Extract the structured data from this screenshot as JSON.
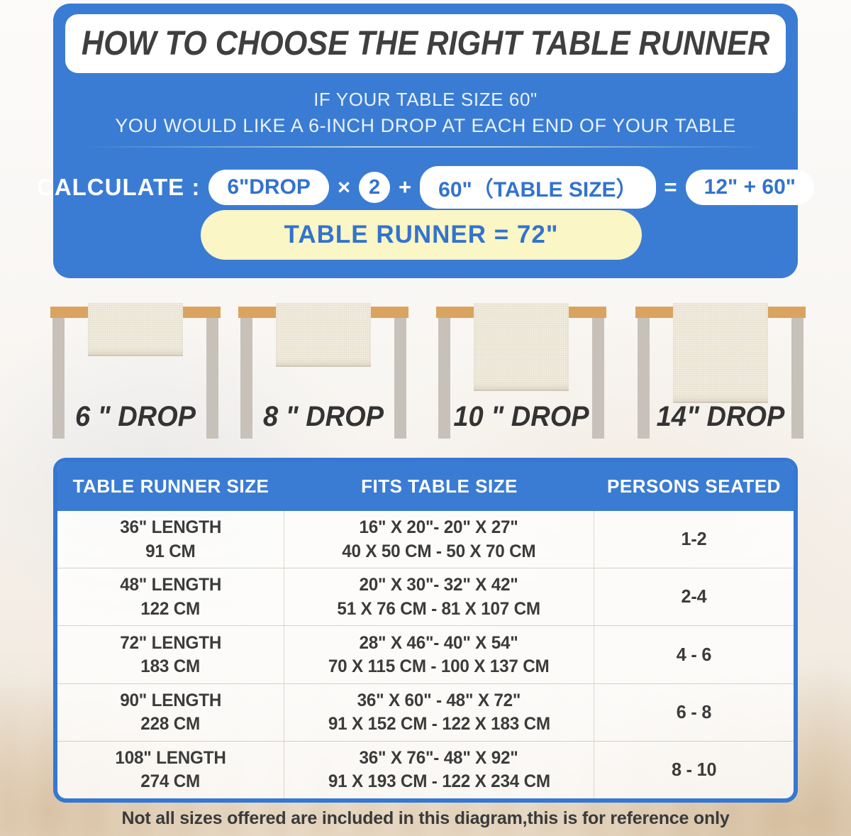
{
  "intro": {
    "title": "HOW TO CHOOSE THE RIGHT TABLE RUNNER",
    "subtitle_line1": "IF YOUR TABLE SIZE 60\"",
    "subtitle_line2": "YOU WOULD LIKE A 6-INCH DROP AT EACH END OF YOUR TABLE",
    "calc": {
      "label": "CALCULATE :",
      "drop_pill": "6\"DROP",
      "times_sign": "×",
      "multiplier": "2",
      "plus_sign": "+",
      "table_size_pill": "60\"（TABLE SIZE）",
      "equals_sign": "=",
      "sum_pill": "12\" + 60\"",
      "result": "TABLE RUNNER = 72\""
    }
  },
  "drops": [
    {
      "label": "6 \" DROP",
      "inches": 6
    },
    {
      "label": "8 \" DROP",
      "inches": 8
    },
    {
      "label": "10 \" DROP",
      "inches": 10
    },
    {
      "label": "14\" DROP",
      "inches": 14
    }
  ],
  "size_table": {
    "headers": [
      "TABLE RUNNER SIZE",
      "FITS TABLE SIZE",
      "PERSONS SEATED"
    ],
    "rows": [
      {
        "size_l1": "36\" LENGTH",
        "size_l2": "91 CM",
        "fits_l1": "16\" X 20\"- 20\" X 27\"",
        "fits_l2": "40 X 50 CM - 50 X 70 CM",
        "persons": "1-2"
      },
      {
        "size_l1": "48\" LENGTH",
        "size_l2": "122 CM",
        "fits_l1": "20\" X 30\"- 32\" X 42\"",
        "fits_l2": "51 X 76 CM - 81 X 107 CM",
        "persons": "2-4"
      },
      {
        "size_l1": "72\" LENGTH",
        "size_l2": "183 CM",
        "fits_l1": "28\" X 46\"- 40\" X 54\"",
        "fits_l2": "70 X 115 CM - 100 X 137 CM",
        "persons": "4 - 6"
      },
      {
        "size_l1": "90\" LENGTH",
        "size_l2": "228 CM",
        "fits_l1": "36\" X 60\" - 48\" X 72\"",
        "fits_l2": "91 X 152 CM - 122 X 183 CM",
        "persons": "6 - 8"
      },
      {
        "size_l1": "108\" LENGTH",
        "size_l2": "274 CM",
        "fits_l1": "36\" X 76\"- 48\" X 92\"",
        "fits_l2": "91 X 193 CM - 122 X 234 CM",
        "persons": "8 - 10"
      }
    ]
  },
  "footer": {
    "note": "Not all sizes offered are included in this diagram,this is for reference only"
  },
  "colors": {
    "panel_blue": "#3A7CD4",
    "pill_text_blue": "#3273CE",
    "result_bg_yellow": "#FAF6C5",
    "tabletop_tan": "#D9A45F",
    "leg_gray": "#C7C1BA",
    "runner_cream": "#F1ECDF",
    "title_text": "#3F3F3F"
  }
}
